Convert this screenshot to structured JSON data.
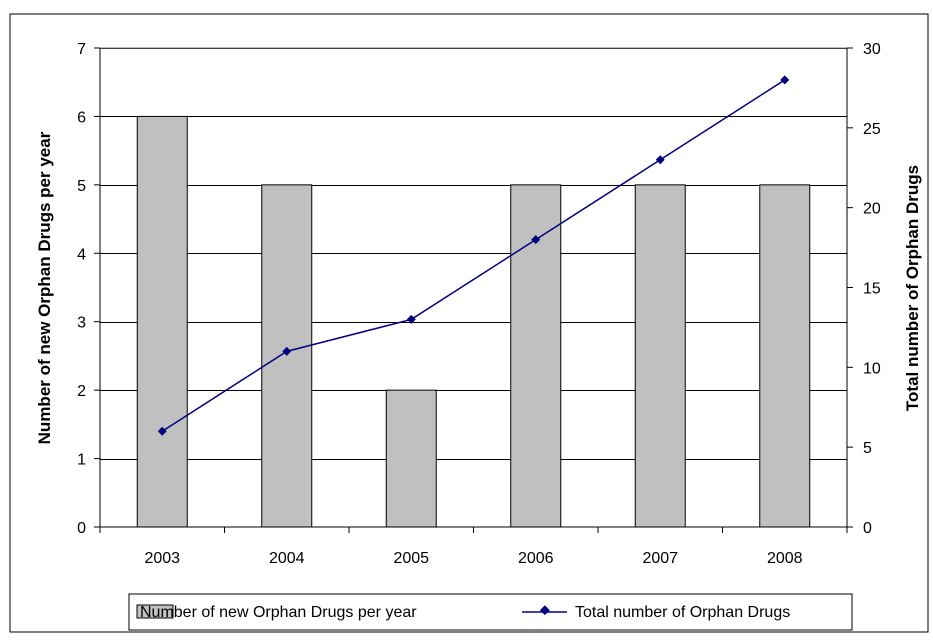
{
  "chart_data": {
    "type": "bar",
    "categories": [
      "2003",
      "2004",
      "2005",
      "2006",
      "2007",
      "2008"
    ],
    "series": [
      {
        "name": "Number of new Orphan Drugs per year",
        "type": "bar",
        "axis": "left",
        "values": [
          6,
          5,
          2,
          5,
          5,
          5
        ],
        "color": "#c0c0c0"
      },
      {
        "name": "Total number of Orphan Drugs",
        "type": "line",
        "axis": "right",
        "marker": "diamond",
        "values": [
          6,
          11,
          13,
          18,
          23,
          28
        ],
        "color": "#000080"
      }
    ],
    "ylabel": "Number of new Orphan Drugs per year",
    "ylabel_right": "Total number of Orphan Drugs",
    "ylim": [
      0,
      7
    ],
    "yticks": [
      0,
      1,
      2,
      3,
      4,
      5,
      6,
      7
    ],
    "ylim_right": [
      0,
      30
    ],
    "yticks_right": [
      0,
      5,
      10,
      15,
      20,
      25,
      30
    ],
    "grid": true,
    "legend_position": "bottom"
  }
}
